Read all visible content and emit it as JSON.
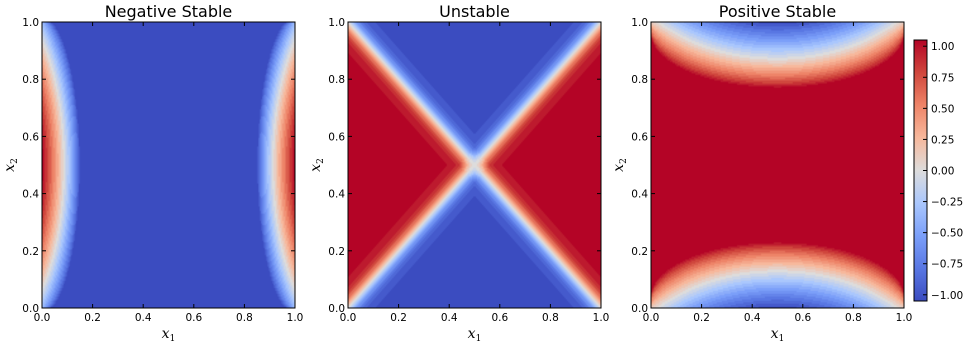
{
  "chart_data": [
    {
      "type": "heatmap",
      "pattern": "negative-stable",
      "title": "Negative Stable",
      "xlabel": "x",
      "xlabel_sub": "1",
      "ylabel": "x",
      "ylabel_sub": "2",
      "xlim": [
        0.0,
        1.0
      ],
      "ylim": [
        0.0,
        1.0
      ],
      "xticks": [
        "0.0",
        "0.2",
        "0.4",
        "0.6",
        "0.8",
        "1.0"
      ],
      "yticks": [
        "0.0",
        "0.2",
        "0.4",
        "0.6",
        "0.8",
        "1.0"
      ],
      "colormap": "coolwarm",
      "value_range": [
        -1.0,
        1.0
      ]
    },
    {
      "type": "heatmap",
      "pattern": "unstable",
      "title": "Unstable",
      "xlabel": "x",
      "xlabel_sub": "1",
      "ylabel": "x",
      "ylabel_sub": "2",
      "xlim": [
        0.0,
        1.0
      ],
      "ylim": [
        0.0,
        1.0
      ],
      "xticks": [
        "0.0",
        "0.2",
        "0.4",
        "0.6",
        "0.8",
        "1.0"
      ],
      "yticks": [
        "0.0",
        "0.2",
        "0.4",
        "0.6",
        "0.8",
        "1.0"
      ],
      "colormap": "coolwarm",
      "value_range": [
        -1.0,
        1.0
      ]
    },
    {
      "type": "heatmap",
      "pattern": "positive-stable",
      "title": "Positive Stable",
      "xlabel": "x",
      "xlabel_sub": "1",
      "ylabel": "x",
      "ylabel_sub": "2",
      "xlim": [
        0.0,
        1.0
      ],
      "ylim": [
        0.0,
        1.0
      ],
      "xticks": [
        "0.0",
        "0.2",
        "0.4",
        "0.6",
        "0.8",
        "1.0"
      ],
      "yticks": [
        "0.0",
        "0.2",
        "0.4",
        "0.6",
        "0.8",
        "1.0"
      ],
      "colormap": "coolwarm",
      "value_range": [
        -1.0,
        1.0
      ]
    }
  ],
  "colorbar": {
    "ticks": [
      {
        "value": 1.0,
        "label": "1.00"
      },
      {
        "value": 0.75,
        "label": "0.75"
      },
      {
        "value": 0.5,
        "label": "0.50"
      },
      {
        "value": 0.25,
        "label": "0.25"
      },
      {
        "value": 0.0,
        "label": "0.00"
      },
      {
        "value": -0.25,
        "label": "−0.25"
      },
      {
        "value": -0.5,
        "label": "−0.50"
      },
      {
        "value": -0.75,
        "label": "−0.75"
      },
      {
        "value": -1.0,
        "label": "−1.00"
      }
    ],
    "range": [
      -1.05,
      1.05
    ]
  },
  "colors": {
    "cold": "#3b4cc0",
    "mid": "#dddddd",
    "warm": "#b40426"
  }
}
